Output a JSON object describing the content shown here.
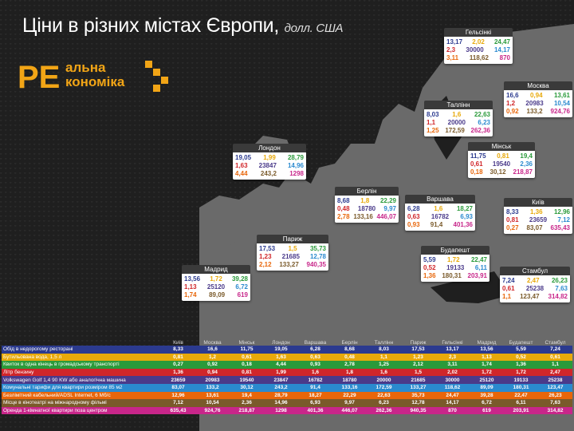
{
  "title": "Ціни в різних містах Європи,",
  "title_unit": "долл. США",
  "logo": {
    "text_top": "альна",
    "text_bottom": "кономіка",
    "letters": "РЕ"
  },
  "colors": {
    "row_colors": [
      "#2b3a8f",
      "#e8a90a",
      "#2a9a3a",
      "#d0262a",
      "#4a3a8a",
      "#2a8acf",
      "#e8660a",
      "#7a5a2a",
      "#c8268a"
    ]
  },
  "cards": [
    {
      "city": "Гельсінкі",
      "v": [
        "13,17",
        "2,02",
        "24,47",
        "2,3",
        "30000",
        "14,17",
        "3,11",
        "118,62",
        "870"
      ]
    },
    {
      "city": "Москва",
      "v": [
        "16,6",
        "0,94",
        "13,61",
        "1,2",
        "20983",
        "10,54",
        "0,92",
        "133,2",
        "924,76"
      ]
    },
    {
      "city": "Таллінн",
      "v": [
        "8,03",
        "1,6",
        "22,63",
        "1,1",
        "20000",
        "6,23",
        "1,25",
        "172,59",
        "262,36"
      ]
    },
    {
      "city": "Лондон",
      "v": [
        "19,05",
        "1,99",
        "28,79",
        "1,63",
        "23847",
        "14,96",
        "4,44",
        "243,2",
        "1298"
      ]
    },
    {
      "city": "Мінськ",
      "v": [
        "11,75",
        "0,81",
        "19,4",
        "0,61",
        "19540",
        "2,36",
        "0,18",
        "30,12",
        "218,87"
      ]
    },
    {
      "city": "Берлін",
      "v": [
        "8,68",
        "1,8",
        "22,29",
        "0,48",
        "18780",
        "9,97",
        "2,78",
        "133,16",
        "446,07"
      ]
    },
    {
      "city": "Варшава",
      "v": [
        "6,28",
        "1,6",
        "18,27",
        "0,63",
        "16782",
        "6,93",
        "0,93",
        "91,4",
        "401,36"
      ]
    },
    {
      "city": "Київ",
      "v": [
        "8,33",
        "1,36",
        "12,96",
        "0,81",
        "23659",
        "7,12",
        "0,27",
        "83,07",
        "635,43"
      ]
    },
    {
      "city": "Париж",
      "v": [
        "17,53",
        "1,5",
        "35,73",
        "1,23",
        "21685",
        "12,78",
        "2,12",
        "133,27",
        "940,35"
      ]
    },
    {
      "city": "Будапешт",
      "v": [
        "5,59",
        "1,72",
        "22,47",
        "0,52",
        "19133",
        "6,11",
        "1,36",
        "180,31",
        "203,91"
      ]
    },
    {
      "city": "Мадрид",
      "v": [
        "13,56",
        "1,72",
        "39,28",
        "1,13",
        "25120",
        "6,72",
        "1,74",
        "89,09",
        "619"
      ]
    },
    {
      "city": "Стамбул",
      "v": [
        "7,24",
        "2,47",
        "26,23",
        "0,61",
        "25238",
        "7,63",
        "1,1",
        "123,47",
        "314,82"
      ]
    }
  ],
  "chart_data": {
    "type": "table",
    "columns": [
      "Київ",
      "Москва",
      "Мінськ",
      "Лондон",
      "Варшава",
      "Берлін",
      "Таллінн",
      "Париж",
      "Гельсінкі",
      "Мадрид",
      "Будапешт",
      "Стамбул"
    ],
    "rows": [
      {
        "label": "Обід в недорогому ресторані",
        "values": [
          "8,33",
          "16,6",
          "11,75",
          "19,05",
          "6,28",
          "8,68",
          "8,03",
          "17,53",
          "13,17",
          "13,56",
          "5,59",
          "7,24"
        ]
      },
      {
        "label": "Бутильована вода, 1,5 л",
        "values": [
          "0,81",
          "1,2",
          "0,61",
          "1,63",
          "0,63",
          "0,48",
          "1,1",
          "1,23",
          "2,3",
          "1,13",
          "0,52",
          "0,61"
        ]
      },
      {
        "label": "Квиток в одна кінець в громадському транспорті",
        "values": [
          "0,27",
          "0,92",
          "0,18",
          "4,44",
          "0,93",
          "2,78",
          "1,25",
          "2,12",
          "3,11",
          "1,74",
          "1,36",
          "1,1"
        ]
      },
      {
        "label": "Літр бензину",
        "values": [
          "1,36",
          "0,94",
          "0,81",
          "1,99",
          "1,6",
          "1,8",
          "1,6",
          "1,5",
          "2,02",
          "1,72",
          "1,72",
          "2,47"
        ]
      },
      {
        "label": "Volkswagen Golf 1,4 90 KW або аналогічна машина",
        "values": [
          "23659",
          "20983",
          "19540",
          "23847",
          "16782",
          "18780",
          "20000",
          "21685",
          "30000",
          "25120",
          "19133",
          "25238"
        ]
      },
      {
        "label": "Комунальні тарифи для квартири розміром 85 м2",
        "values": [
          "83,07",
          "133,2",
          "30,12",
          "243,2",
          "91,4",
          "133,16",
          "172,59",
          "133,27",
          "118,62",
          "89,09",
          "180,31",
          "123,47"
        ]
      },
      {
        "label": "Безлімітний кабельний/ADSL Internet, 6 Мб/с",
        "values": [
          "12,96",
          "13,61",
          "19,4",
          "28,79",
          "18,27",
          "22,29",
          "22,63",
          "35,73",
          "24,47",
          "39,28",
          "22,47",
          "26,23"
        ]
      },
      {
        "label": "Місце в кінотеатрі на міжнародному фільмі",
        "values": [
          "7,12",
          "10,54",
          "2,36",
          "14,96",
          "6,93",
          "9,97",
          "6,23",
          "12,78",
          "14,17",
          "6,72",
          "6,11",
          "7,63"
        ]
      },
      {
        "label": "Оренда 1-кімнатної квартири поза центром",
        "values": [
          "635,43",
          "924,76",
          "218,87",
          "1298",
          "401,36",
          "446,07",
          "262,36",
          "940,35",
          "870",
          "619",
          "203,91",
          "314,82"
        ]
      }
    ]
  }
}
